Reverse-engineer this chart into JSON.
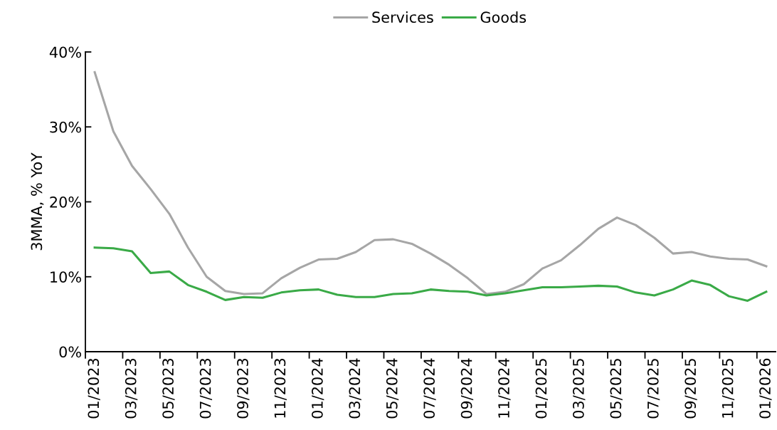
{
  "chart_data": {
    "type": "line",
    "ylabel": "3MMA, % YoY",
    "categories": [
      "01/2023",
      null,
      "03/2023",
      null,
      "05/2023",
      null,
      "07/2023",
      null,
      "09/2023",
      null,
      "11/2023",
      null,
      "01/2024",
      null,
      "03/2024",
      null,
      "05/2024",
      null,
      "07/2024",
      null,
      "09/2024",
      null,
      "11/2024",
      null,
      "01/2025",
      null,
      "03/2025",
      null,
      "05/2025",
      null,
      "07/2025",
      null,
      "09/2025",
      null,
      "11/2025",
      null,
      "01/2026"
    ],
    "series": [
      {
        "name": "Services",
        "color": "#a6a6a6",
        "values": [
          37.3,
          29.4,
          24.8,
          21.7,
          18.4,
          13.9,
          10.0,
          8.1,
          7.7,
          7.8,
          9.8,
          11.2,
          12.3,
          12.4,
          13.3,
          14.9,
          15.0,
          14.4,
          13.1,
          11.6,
          9.8,
          7.7,
          8.0,
          9.0,
          11.1,
          12.2,
          14.2,
          16.4,
          17.9,
          16.9,
          15.2,
          13.1,
          13.3,
          12.7,
          12.4,
          12.3,
          11.4
        ]
      },
      {
        "name": "Goods",
        "color": "#3aaa47",
        "values": [
          13.9,
          13.8,
          13.4,
          10.5,
          10.7,
          8.9,
          8.0,
          6.9,
          7.3,
          7.2,
          7.9,
          8.2,
          8.3,
          7.6,
          7.3,
          7.3,
          7.7,
          7.8,
          8.3,
          8.1,
          8.0,
          7.5,
          7.8,
          8.2,
          8.6,
          8.6,
          8.7,
          8.8,
          8.7,
          7.9,
          7.5,
          8.3,
          9.5,
          8.9,
          7.4,
          6.8,
          8.0
        ]
      }
    ],
    "ylim": [
      0,
      40
    ],
    "yticks": [
      {
        "value": 0,
        "label": "0%"
      },
      {
        "value": 10,
        "label": "10%"
      },
      {
        "value": 20,
        "label": "20%"
      },
      {
        "value": 30,
        "label": "30%"
      },
      {
        "value": 40,
        "label": "40%"
      }
    ],
    "grid": false,
    "legend": "top",
    "marker": "none",
    "line_style": "solid"
  }
}
